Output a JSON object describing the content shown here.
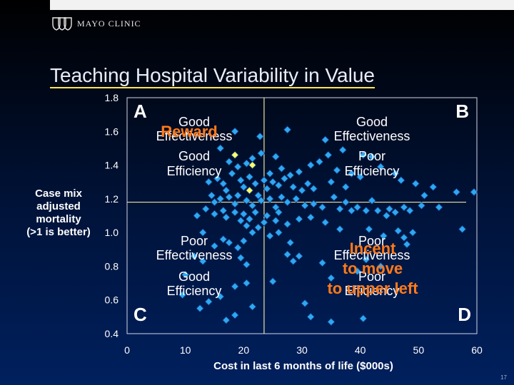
{
  "logo": {
    "text": "MAYO CLINIC"
  },
  "slide": {
    "title": "Teaching Hospital Variability in Value",
    "page": "17"
  },
  "colors": {
    "point": "#2fa8f0",
    "highlight": "#ffff66",
    "callout": "#ff7a1a",
    "divider": "#e6e6a0"
  },
  "chart_data": {
    "type": "scatter",
    "title": "Teaching Hospital Variability in Value",
    "xlabel": "Cost in last 6 months of life ($000s)",
    "ylabel": "Case mix\nadjusted\nmortality\n(>1 is better)",
    "xlim": [
      0,
      60
    ],
    "ylim": [
      0.4,
      1.8
    ],
    "xticks": [
      "0",
      "10",
      "20",
      "30",
      "40",
      "50",
      "60"
    ],
    "yticks": [
      "0.4",
      "0.6",
      "0.8",
      "1.0",
      "1.2",
      "1.4",
      "1.6",
      "1.8"
    ],
    "dividers": {
      "x": 23.5,
      "y": 1.18
    },
    "quadrants": [
      {
        "letter": "A",
        "lines": [
          "Good",
          "Effectiveness",
          "Good",
          "Efficiency"
        ]
      },
      {
        "letter": "B",
        "lines": [
          "Good",
          "Effectiveness",
          "Poor",
          "Efficiency"
        ]
      },
      {
        "letter": "C",
        "lines": [
          "Poor",
          "Effectiveness",
          "Good",
          "Efficiency"
        ]
      },
      {
        "letter": "D",
        "lines": [
          "Poor",
          "Effectiveness",
          "Poor",
          "Efficiency"
        ]
      }
    ],
    "callouts": {
      "reward": "Reward",
      "incent_1": "Incent",
      "incent_2": "to move",
      "incent_3": "to upper left"
    },
    "series": [
      {
        "points": [
          [
            18.5,
            1.6
          ],
          [
            22.8,
            1.57
          ],
          [
            27.5,
            1.61
          ],
          [
            34.0,
            1.55
          ],
          [
            37.0,
            1.49
          ],
          [
            40.5,
            1.46
          ],
          [
            42.0,
            1.45
          ],
          [
            16.0,
            1.5
          ],
          [
            17.5,
            1.42
          ],
          [
            19.0,
            1.39
          ],
          [
            20.5,
            1.41
          ],
          [
            21.5,
            1.44
          ],
          [
            23.0,
            1.47
          ],
          [
            25.5,
            1.45
          ],
          [
            26.5,
            1.38
          ],
          [
            28.0,
            1.34
          ],
          [
            29.5,
            1.36
          ],
          [
            31.5,
            1.4
          ],
          [
            33.0,
            1.42
          ],
          [
            34.5,
            1.46
          ],
          [
            36.0,
            1.37
          ],
          [
            38.5,
            1.35
          ],
          [
            40.0,
            1.33
          ],
          [
            43.5,
            1.39
          ],
          [
            46.0,
            1.35
          ],
          [
            47.0,
            1.31
          ],
          [
            49.5,
            1.29
          ],
          [
            51.0,
            1.22
          ],
          [
            52.5,
            1.27
          ],
          [
            56.5,
            1.24
          ],
          [
            59.5,
            1.24
          ],
          [
            14.0,
            1.3
          ],
          [
            15.5,
            1.32
          ],
          [
            16.5,
            1.29
          ],
          [
            17.0,
            1.25
          ],
          [
            18.0,
            1.35
          ],
          [
            19.5,
            1.31
          ],
          [
            20.0,
            1.27
          ],
          [
            21.0,
            1.33
          ],
          [
            22.0,
            1.29
          ],
          [
            23.5,
            1.31
          ],
          [
            24.0,
            1.26
          ],
          [
            24.5,
            1.35
          ],
          [
            25.0,
            1.3
          ],
          [
            26.0,
            1.28
          ],
          [
            27.0,
            1.32
          ],
          [
            28.5,
            1.27
          ],
          [
            30.0,
            1.25
          ],
          [
            31.0,
            1.29
          ],
          [
            32.0,
            1.26
          ],
          [
            35.0,
            1.3
          ],
          [
            37.5,
            1.27
          ],
          [
            14.5,
            1.22
          ],
          [
            15.0,
            1.18
          ],
          [
            16.0,
            1.2
          ],
          [
            17.5,
            1.21
          ],
          [
            18.5,
            1.17
          ],
          [
            19.0,
            1.22
          ],
          [
            20.5,
            1.19
          ],
          [
            21.5,
            1.16
          ],
          [
            22.5,
            1.22
          ],
          [
            23.0,
            1.19
          ],
          [
            24.5,
            1.2
          ],
          [
            25.5,
            1.15
          ],
          [
            26.5,
            1.21
          ],
          [
            27.5,
            1.18
          ],
          [
            29.0,
            1.2
          ],
          [
            30.5,
            1.16
          ],
          [
            32.0,
            1.17
          ],
          [
            33.5,
            1.15
          ],
          [
            35.5,
            1.21
          ],
          [
            36.5,
            1.14
          ],
          [
            37.5,
            1.18
          ],
          [
            38.5,
            1.13
          ],
          [
            39.5,
            1.15
          ],
          [
            41.0,
            1.13
          ],
          [
            42.0,
            1.19
          ],
          [
            43.0,
            1.13
          ],
          [
            44.5,
            1.1
          ],
          [
            45.0,
            1.14
          ],
          [
            46.0,
            1.12
          ],
          [
            47.5,
            1.15
          ],
          [
            48.5,
            1.13
          ],
          [
            50.5,
            1.16
          ],
          [
            53.5,
            1.15
          ],
          [
            57.5,
            1.02
          ],
          [
            12.0,
            1.1
          ],
          [
            13.5,
            1.14
          ],
          [
            15.0,
            1.11
          ],
          [
            16.5,
            1.13
          ],
          [
            17.0,
            1.09
          ],
          [
            18.5,
            1.12
          ],
          [
            19.5,
            1.07
          ],
          [
            20.0,
            1.11
          ],
          [
            21.0,
            1.08
          ],
          [
            22.0,
            1.12
          ],
          [
            23.5,
            1.06
          ],
          [
            24.0,
            1.1
          ],
          [
            25.5,
            1.07
          ],
          [
            26.0,
            1.12
          ],
          [
            27.5,
            1.05
          ],
          [
            29.5,
            1.08
          ],
          [
            31.5,
            1.09
          ],
          [
            20.5,
            1.04
          ],
          [
            21.5,
            1.0
          ],
          [
            22.5,
            1.03
          ],
          [
            24.5,
            0.98
          ],
          [
            26.0,
            1.0
          ],
          [
            28.0,
            0.94
          ],
          [
            34.0,
            1.06
          ],
          [
            36.5,
            1.02
          ],
          [
            41.5,
            1.02
          ],
          [
            44.0,
            0.98
          ],
          [
            46.5,
            1.01
          ],
          [
            47.5,
            0.97
          ],
          [
            48.0,
            0.93
          ],
          [
            49.0,
            1.0
          ],
          [
            13.0,
            1.0
          ],
          [
            15.0,
            0.92
          ],
          [
            16.5,
            0.96
          ],
          [
            17.5,
            0.94
          ],
          [
            19.0,
            0.91
          ],
          [
            20.0,
            0.95
          ],
          [
            11.5,
            0.86
          ],
          [
            13.0,
            0.83
          ],
          [
            19.5,
            0.85
          ],
          [
            20.5,
            0.81
          ],
          [
            27.5,
            0.87
          ],
          [
            28.5,
            0.83
          ],
          [
            29.5,
            0.86
          ],
          [
            33.5,
            0.82
          ],
          [
            41.0,
            0.84
          ],
          [
            43.5,
            0.8
          ],
          [
            35.0,
            0.73
          ],
          [
            39.5,
            0.77
          ],
          [
            10.0,
            0.75
          ],
          [
            18.5,
            0.68
          ],
          [
            20.5,
            0.7
          ],
          [
            25.0,
            0.71
          ],
          [
            14.0,
            0.59
          ],
          [
            16.0,
            0.62
          ],
          [
            21.5,
            0.56
          ],
          [
            30.5,
            0.58
          ],
          [
            9.5,
            0.63
          ],
          [
            12.5,
            0.55
          ],
          [
            17.0,
            0.48
          ],
          [
            18.5,
            0.51
          ],
          [
            31.5,
            0.5
          ],
          [
            35.0,
            0.47
          ],
          [
            40.5,
            0.49
          ]
        ]
      },
      {
        "points": [
          [
            18.5,
            1.46
          ],
          [
            21.5,
            1.4
          ],
          [
            21.0,
            1.25
          ]
        ]
      }
    ]
  }
}
